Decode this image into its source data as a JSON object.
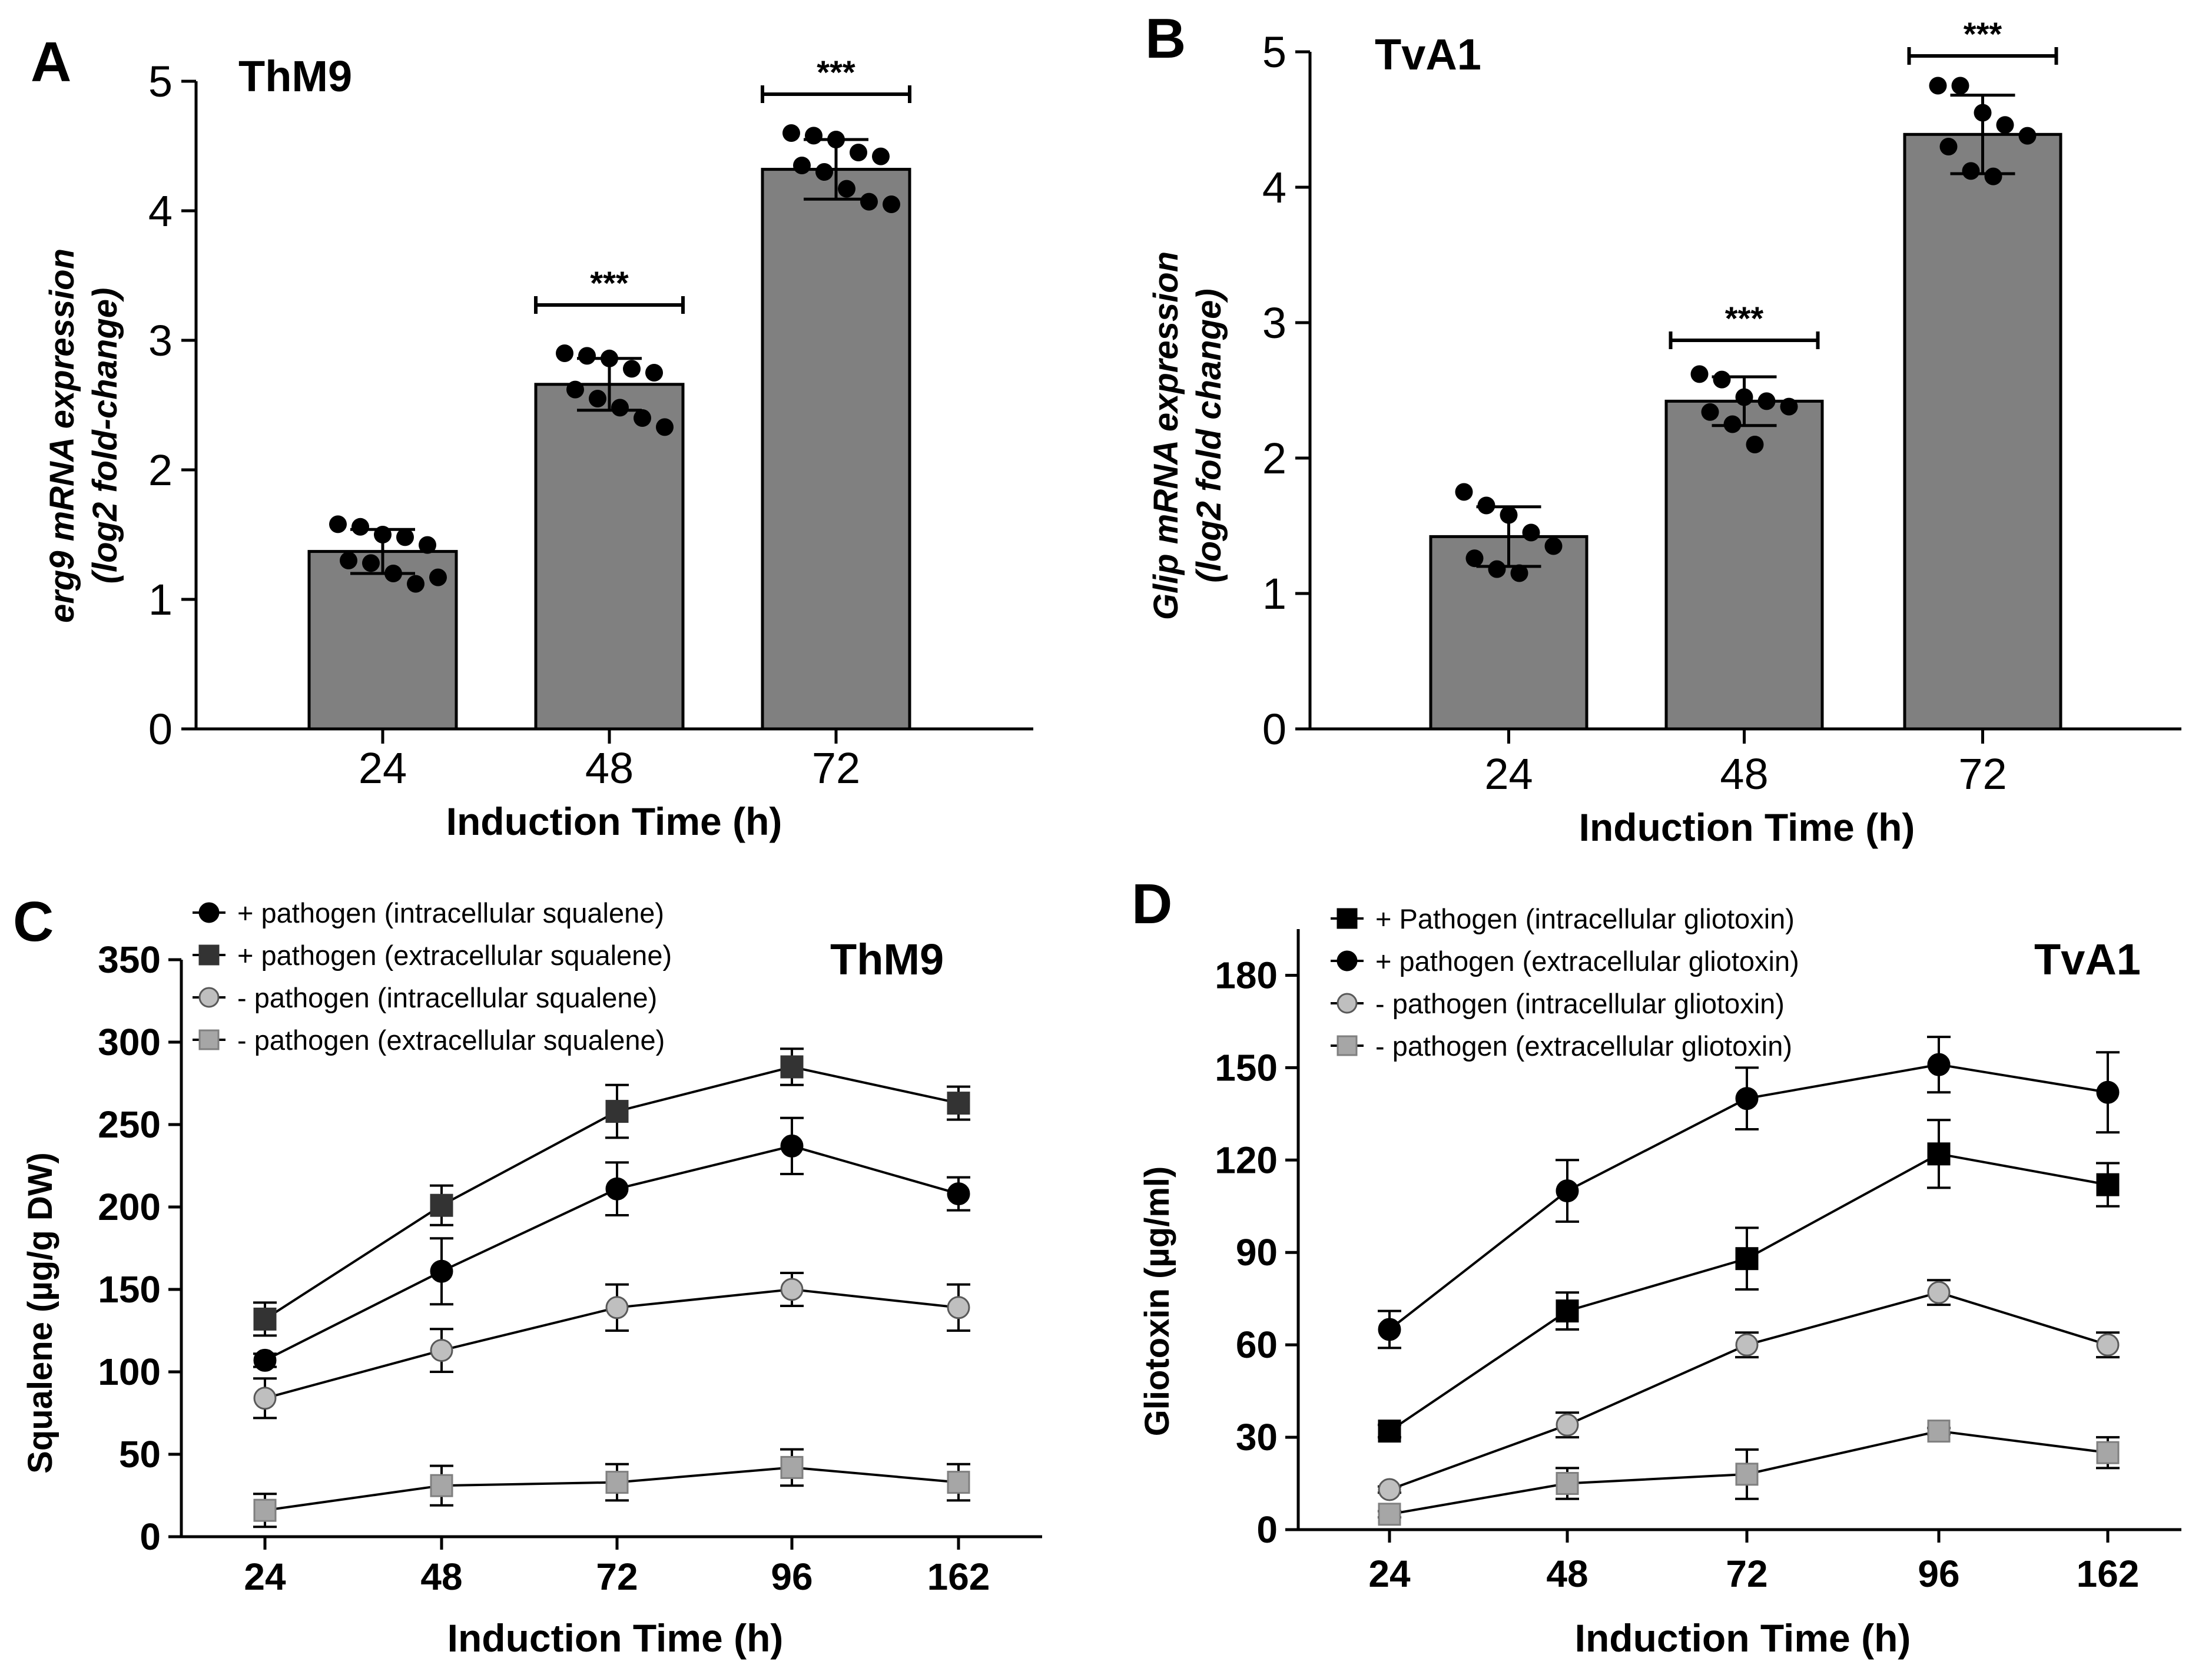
{
  "figure": {
    "panel_letters": [
      "A",
      "B",
      "C",
      "D"
    ]
  },
  "chart_data": [
    {
      "panel": "A",
      "type": "bar",
      "title": "ThM9",
      "xlabel": "Induction Time (h)",
      "ylabel_lines": [
        "erg9 mRNA expression",
        "(log2 fold-change)"
      ],
      "categories": [
        "24",
        "48",
        "72"
      ],
      "values": [
        1.37,
        2.66,
        4.32
      ],
      "errors": [
        0.17,
        0.2,
        0.23
      ],
      "points": [
        [
          1.58,
          1.56,
          1.5,
          1.48,
          1.42,
          1.3,
          1.28,
          1.2,
          1.12,
          1.17
        ],
        [
          2.9,
          2.88,
          2.86,
          2.78,
          2.75,
          2.62,
          2.55,
          2.48,
          2.4,
          2.33
        ],
        [
          4.6,
          4.58,
          4.55,
          4.45,
          4.42,
          4.35,
          4.3,
          4.17,
          4.07,
          4.05
        ]
      ],
      "significance": [
        "",
        "***",
        "***"
      ],
      "ylim": [
        0,
        5
      ],
      "yticks": [
        0,
        1,
        2,
        3,
        4,
        5
      ],
      "bar_color": "#808080"
    },
    {
      "panel": "B",
      "type": "bar",
      "title": "TvA1",
      "xlabel": "Induction Time (h)",
      "ylabel_lines": [
        "Glip mRNA expression",
        "(log2 fold change)"
      ],
      "categories": [
        "24",
        "48",
        "72"
      ],
      "values": [
        1.42,
        2.42,
        4.39
      ],
      "errors": [
        0.22,
        0.18,
        0.29
      ],
      "points": [
        [
          1.75,
          1.65,
          1.58,
          1.45,
          1.35,
          1.26,
          1.18,
          1.15
        ],
        [
          2.62,
          2.58,
          2.45,
          2.42,
          2.38,
          2.34,
          2.25,
          2.1
        ],
        [
          4.75,
          4.75,
          4.55,
          4.46,
          4.38,
          4.3,
          4.12,
          4.08
        ]
      ],
      "significance": [
        "",
        "***",
        "***"
      ],
      "ylim": [
        0,
        5
      ],
      "yticks": [
        0,
        1,
        2,
        3,
        4,
        5
      ],
      "bar_color": "#808080"
    },
    {
      "panel": "C",
      "type": "line",
      "title": "ThM9",
      "xlabel": "Induction Time (h)",
      "ylabel": "Squalene (µg/g DW)",
      "x": [
        "24",
        "48",
        "72",
        "96",
        "162"
      ],
      "ylim": [
        0,
        350
      ],
      "yticks": [
        0,
        50,
        100,
        150,
        200,
        250,
        300,
        350
      ],
      "legend_position": "top-left",
      "series": [
        {
          "name": "+ pathogen (intracellular squalene)",
          "marker": "circle",
          "color": "#000000",
          "values": [
            107,
            161,
            211,
            237,
            208
          ],
          "errors": [
            4,
            20,
            16,
            17,
            10
          ]
        },
        {
          "name": "+ pathogen (extracellular squalene)",
          "marker": "square",
          "color": "#333333",
          "values": [
            132,
            201,
            258,
            285,
            263
          ],
          "errors": [
            10,
            12,
            16,
            11,
            10
          ]
        },
        {
          "name": "-  pathogen (intracellular squalene)",
          "marker": "circle",
          "color": "#bfbfbf",
          "values": [
            84,
            113,
            139,
            150,
            139
          ],
          "errors": [
            12,
            13,
            14,
            10,
            14
          ]
        },
        {
          "name": "-  pathogen (extracellular squalene)",
          "marker": "square",
          "color": "#a6a6a6",
          "values": [
            16,
            31,
            33,
            42,
            33
          ],
          "errors": [
            10,
            12,
            11,
            11,
            11
          ]
        }
      ]
    },
    {
      "panel": "D",
      "type": "line",
      "title": "TvA1",
      "xlabel": "Induction Time (h)",
      "ylabel": "Gliotoxin (µg/ml)",
      "x": [
        "24",
        "48",
        "72",
        "96",
        "162"
      ],
      "ylim": [
        0,
        195
      ],
      "yticks": [
        0,
        30,
        60,
        90,
        120,
        150,
        180
      ],
      "legend_position": "top-left",
      "series": [
        {
          "name": "+ Pathogen (intracellular gliotoxin)",
          "marker": "square",
          "color": "#000000",
          "values": [
            32,
            71,
            88,
            122,
            112
          ],
          "errors": [
            2,
            6,
            10,
            11,
            7
          ]
        },
        {
          "name": "+ pathogen (extracellular gliotoxin)",
          "marker": "circle",
          "color": "#000000",
          "values": [
            65,
            110,
            140,
            151,
            142
          ],
          "errors": [
            6,
            10,
            10,
            9,
            13
          ]
        },
        {
          "name": "-  pathogen (intracellular gliotoxin)",
          "marker": "circle",
          "color": "#bfbfbf",
          "values": [
            13,
            34,
            60,
            77,
            60
          ],
          "errors": [
            1,
            4,
            4,
            4,
            4
          ]
        },
        {
          "name": "-  pathogen (extracellular gliotoxin)",
          "marker": "square",
          "color": "#a6a6a6",
          "values": [
            5,
            15,
            18,
            32,
            25
          ],
          "errors": [
            1,
            5,
            8,
            1,
            5
          ]
        }
      ]
    }
  ]
}
